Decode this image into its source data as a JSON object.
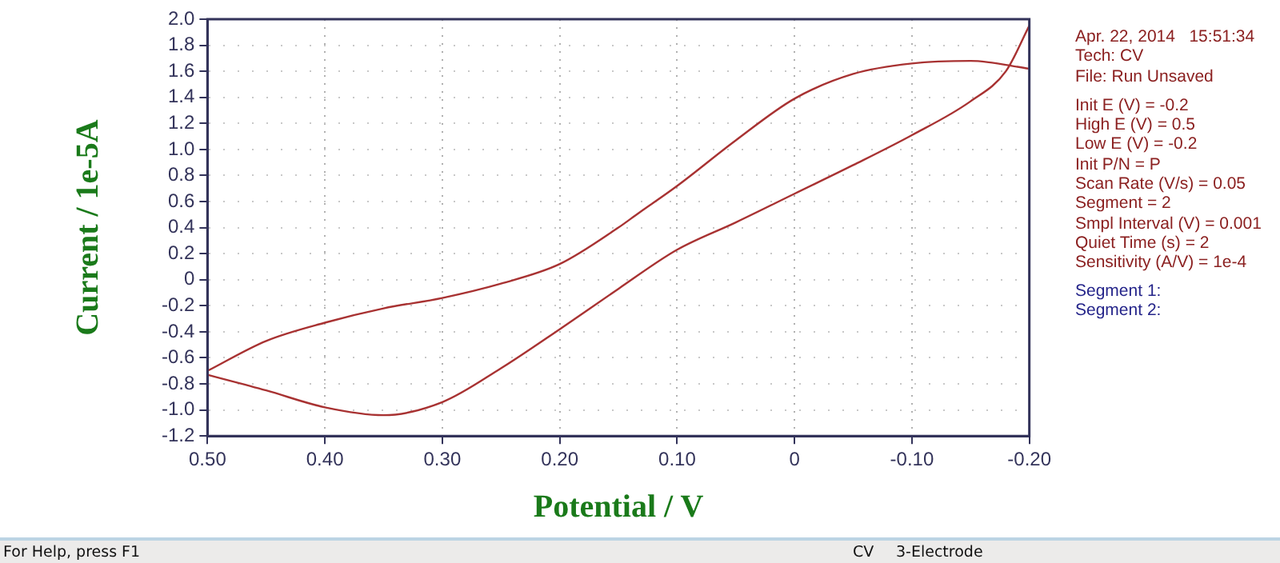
{
  "chart_data": {
    "type": "line",
    "xlabel": "Potential / V",
    "ylabel": "Current / 1e-5A",
    "series": [
      {
        "color": "#a83232",
        "x": [
          -0.2,
          -0.18,
          -0.15,
          -0.1,
          -0.05,
          0,
          0.05,
          0.1,
          0.15,
          0.2,
          0.25,
          0.3,
          0.35,
          0.4,
          0.45,
          0.5
        ],
        "values": [
          1.95,
          1.6,
          1.37,
          1.11,
          0.88,
          0.66,
          0.44,
          0.23,
          -0.07,
          -0.38,
          -0.68,
          -0.94,
          -1.04,
          -0.98,
          -0.85,
          -0.73
        ]
      },
      {
        "color": "#a83232",
        "x": [
          0.5,
          0.45,
          0.4,
          0.35,
          0.3,
          0.25,
          0.2,
          0.15,
          0.133,
          0.1,
          0.05,
          0,
          -0.05,
          -0.1,
          -0.15,
          -0.2
        ],
        "values": [
          -0.7,
          -0.47,
          -0.33,
          -0.22,
          -0.14,
          -0.03,
          0.12,
          0.4,
          0.51,
          0.72,
          1.07,
          1.39,
          1.58,
          1.66,
          1.68,
          1.62
        ]
      }
    ],
    "xlim": [
      0.5,
      -0.2
    ],
    "xticks": [
      {
        "value": 0.5,
        "label": "0.50"
      },
      {
        "value": 0.4,
        "label": "0.40"
      },
      {
        "value": 0.3,
        "label": "0.30"
      },
      {
        "value": 0.2,
        "label": "0.20"
      },
      {
        "value": 0.1,
        "label": "0.10"
      },
      0,
      {
        "value": -0.1,
        "label": "-0.10"
      },
      {
        "value": -0.2,
        "label": "-0.20"
      }
    ],
    "ylim": [
      -1.2,
      2.0
    ],
    "yticks": [
      -1.2,
      {
        "value": -1.0,
        "label": "-1.0"
      },
      -0.8,
      -0.6,
      -0.4,
      -0.2,
      0,
      0.2,
      0.4,
      0.6,
      0.8,
      {
        "value": 1.0,
        "label": "1.0"
      },
      1.2,
      1.4,
      1.6,
      1.8,
      {
        "value": 2.0,
        "label": "2.0"
      }
    ],
    "grid": true,
    "legend": false,
    "marker": "none",
    "line_style": "solid",
    "annotations": [
      "Apr. 22, 2014   15:51:34",
      "Tech: CV",
      "File: Run Unsaved",
      "Init E (V) = -0.2",
      "High E (V) = 0.5",
      "Low E (V) = -0.2",
      "Init P/N = P",
      "Scan Rate (V/s) = 0.05",
      "Segment = 2",
      "Smpl Interval (V) = 0.001",
      "Quiet Time (s) = 2",
      "Sensitivity (A/V) = 1e-4",
      "Segment 1:",
      "Segment 2:",
      "For Help, press F1",
      "CV",
      "3-Electrode"
    ]
  }
}
